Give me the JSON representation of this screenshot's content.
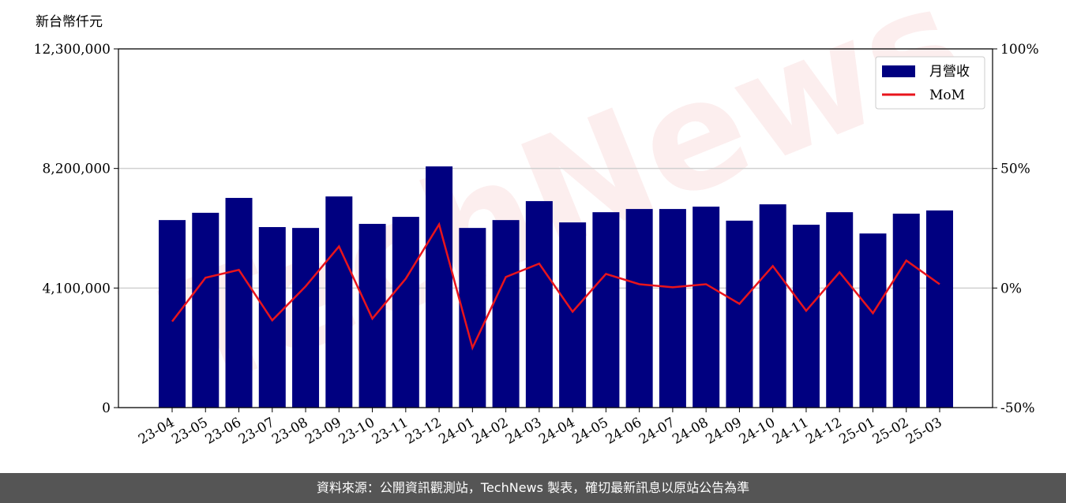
{
  "chart_data": {
    "type": "bar_line",
    "y_label": "新台幣仟元",
    "watermark": "TechNews",
    "categories": [
      "23-04",
      "23-05",
      "23-06",
      "23-07",
      "23-08",
      "23-09",
      "23-10",
      "23-11",
      "23-12",
      "24-01",
      "24-02",
      "24-03",
      "24-04",
      "24-05",
      "24-06",
      "24-07",
      "24-08",
      "24-09",
      "24-10",
      "24-11",
      "24-12",
      "25-01",
      "25-02",
      "25-03"
    ],
    "series": [
      {
        "name": "月營收",
        "color": "#000080",
        "kind": "bar",
        "values": [
          6430000,
          6680000,
          7190000,
          6190000,
          6160000,
          7240000,
          6300000,
          6540000,
          8270000,
          6160000,
          6430000,
          7080000,
          6350000,
          6700000,
          6810000,
          6810000,
          6890000,
          6410000,
          6970000,
          6270000,
          6700000,
          5970000,
          6650000,
          6760000
        ]
      },
      {
        "name": "MoM",
        "color": "#e8141c",
        "kind": "line",
        "axis": "y2",
        "values": [
          -14,
          4.3,
          7.6,
          -13.5,
          0.7,
          17.4,
          -12.8,
          3.9,
          26.6,
          -25,
          4.6,
          10.2,
          -9.9,
          5.9,
          1.6,
          0.3,
          1.6,
          -6.6,
          9.2,
          -9.5,
          6.6,
          -10.5,
          11.5,
          1.6
        ]
      }
    ],
    "ylim": [
      0,
      12300000
    ],
    "yticks": [
      0,
      {
        "value": 4100000,
        "label": "4,100,000"
      },
      {
        "value": 8200000,
        "label": "8,200,000"
      },
      {
        "value": 12300000,
        "label": "12,300,000"
      }
    ],
    "y2lim": [
      -50,
      100
    ],
    "y2ticks": [
      {
        "value": -50,
        "label": "-50%"
      },
      {
        "value": 0,
        "label": "0%"
      },
      {
        "value": 50,
        "label": "50%"
      },
      {
        "value": 100,
        "label": "100%"
      }
    ],
    "grid": true,
    "legend": "upper right",
    "footer": "資料來源：公開資訊觀測站，TechNews 製表，確切最新訊息以原站公告為準"
  }
}
